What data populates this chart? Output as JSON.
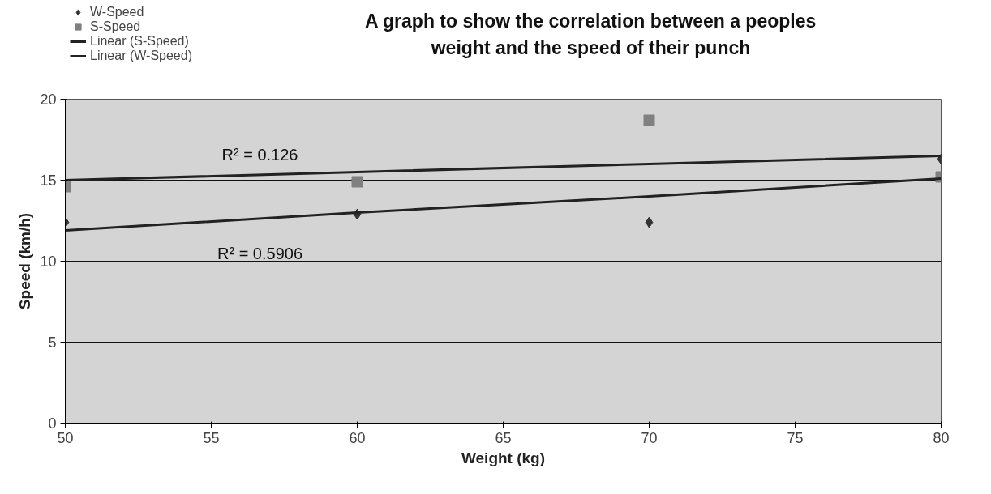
{
  "chart_data": {
    "type": "scatter",
    "title": "A graph to show the correlation between a peoples weight and the speed of their punch",
    "xlabel": "Weight (kg)",
    "ylabel": "Speed (km/h)",
    "x": [
      50,
      60,
      70,
      80
    ],
    "series": [
      {
        "name": "W-Speed",
        "color": "#333333",
        "marker": "diamond",
        "values": [
          12.4,
          12.9,
          12.4,
          16.3
        ]
      },
      {
        "name": "S-Speed",
        "color": "#808080",
        "marker": "square",
        "values": [
          14.6,
          14.9,
          18.7,
          15.2
        ]
      },
      {
        "name": "Linear (S-Speed)",
        "type": "line",
        "color": "#222222",
        "values": [
          15.0,
          15.5,
          16.0,
          16.5
        ]
      },
      {
        "name": "Linear (W-Speed)",
        "type": "line",
        "color": "#222222",
        "values": [
          11.9,
          13.0,
          14.0,
          15.1
        ]
      }
    ],
    "annotations": [
      "R² = 0.126",
      "R² = 0.5906"
    ],
    "xlim": [
      50,
      80
    ],
    "xticks": [
      50,
      55,
      60,
      65,
      70,
      75,
      80
    ],
    "ylim": [
      0,
      20
    ],
    "yticks": [
      0,
      5,
      10,
      15,
      20
    ],
    "grid": "y",
    "legend": "top left"
  }
}
